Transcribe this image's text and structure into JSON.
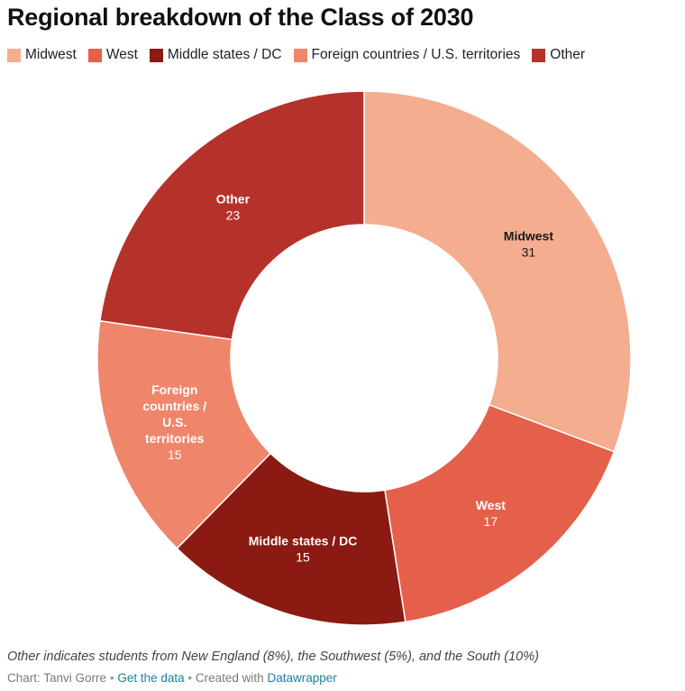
{
  "title": "Regional breakdown of the Class of 2030",
  "notes": "Other indicates students from New England (8%), the Southwest (5%), and the South (10%)",
  "footer": {
    "chart_by": "Chart: Tanvi Gorre",
    "separator": "•",
    "get_data": "Get the data",
    "created_with": "Created with",
    "tool": "Datawrapper"
  },
  "colors": {
    "Midwest": "#f4ad8f",
    "West": "#e4604a",
    "Middle states / DC": "#8b1b12",
    "Foreign countries / U.S. territories": "#ef866b",
    "Other": "#b5322a"
  },
  "chart_data": {
    "type": "pie",
    "donut": true,
    "legend_position": "top-left",
    "categories": [
      "Midwest",
      "West",
      "Middle states / DC",
      "Foreign countries / U.S. territories",
      "Other"
    ],
    "values": [
      31,
      17,
      15,
      15,
      23
    ],
    "slice_labels": [
      [
        "Midwest"
      ],
      [
        "West"
      ],
      [
        "Middle states / DC"
      ],
      [
        "Foreign",
        "countries /",
        "U.S.",
        "territories"
      ],
      [
        "Other"
      ]
    ]
  }
}
